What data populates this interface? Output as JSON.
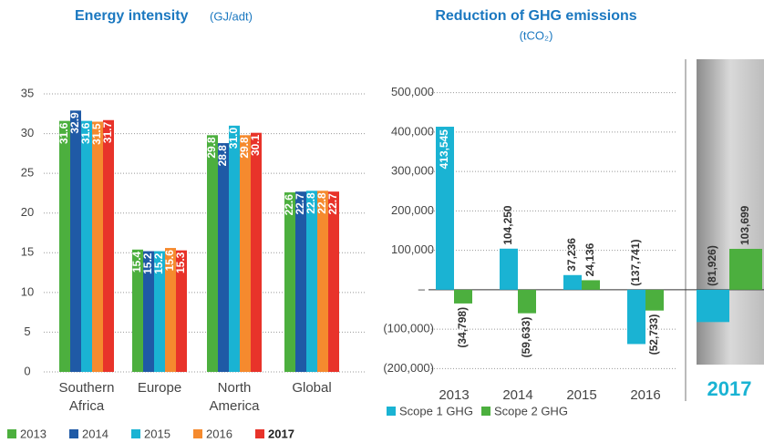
{
  "chart_data": [
    {
      "type": "bar",
      "title": "Energy intensity",
      "subtitle": "(GJ/adt)",
      "categories": [
        "Southern Africa",
        "Europe",
        "North America",
        "Global"
      ],
      "series": [
        {
          "name": "2013",
          "color": "#4caf3e",
          "values": [
            31.6,
            15.4,
            29.8,
            22.6
          ],
          "value_labels": [
            "31.6",
            "15.4",
            "29.8",
            "22.6"
          ]
        },
        {
          "name": "2014",
          "color": "#1f5aa6",
          "values": [
            32.9,
            15.2,
            28.8,
            22.7
          ],
          "value_labels": [
            "32.9",
            "15.2",
            "28.8",
            "22.7"
          ]
        },
        {
          "name": "2015",
          "color": "#1ab3d3",
          "values": [
            31.6,
            15.2,
            31.0,
            22.8
          ],
          "value_labels": [
            "31.6",
            "15.2",
            "31.0",
            "22.8"
          ]
        },
        {
          "name": "2016",
          "color": "#f58a2e",
          "values": [
            31.5,
            15.6,
            29.8,
            22.8
          ],
          "value_labels": [
            "31.5",
            "15.6",
            "29.8",
            "22.8"
          ]
        },
        {
          "name": "2017",
          "color": "#e8332a",
          "values": [
            31.7,
            15.3,
            30.1,
            22.7
          ],
          "value_labels": [
            "31.7",
            "15.3",
            "30.1",
            "22.7"
          ]
        }
      ],
      "ylim": [
        0,
        35
      ],
      "yticks": [
        0,
        5,
        10,
        15,
        20,
        25,
        30,
        35
      ],
      "grid": true,
      "legend": "bottom"
    },
    {
      "type": "bar",
      "title": "Reduction of GHG emissions",
      "subtitle": "(tCO₂)",
      "categories": [
        "2013",
        "2014",
        "2015",
        "2016",
        "2017"
      ],
      "series": [
        {
          "name": "Scope 1 GHG",
          "color": "#1ab3d3",
          "values": [
            413545,
            104250,
            37236,
            -137741,
            -81926
          ],
          "value_labels": [
            "413,545",
            "104,250",
            "37,236",
            "(137,741)",
            "(81,926)"
          ]
        },
        {
          "name": "Scope 2 GHG",
          "color": "#4caf3e",
          "values": [
            -34798,
            -59633,
            24136,
            -52733,
            103699
          ],
          "value_labels": [
            "(34,798)",
            "(59,633)",
            "24,136",
            "(52,733)",
            "103,699"
          ]
        }
      ],
      "ylim": [
        -250000,
        550000
      ],
      "yticks": [
        {
          "value": -200000,
          "label": "(200,000)"
        },
        {
          "value": -100000,
          "label": "(100,000)"
        },
        {
          "value": 0,
          "label": "–"
        },
        {
          "value": 100000,
          "label": "100,000"
        },
        {
          "value": 200000,
          "label": "200,000"
        },
        {
          "value": 300000,
          "label": "300,000"
        },
        {
          "value": 400000,
          "label": "400,000"
        },
        {
          "value": 500000,
          "label": "500,000"
        }
      ],
      "grid": true,
      "legend": "bottom"
    }
  ]
}
